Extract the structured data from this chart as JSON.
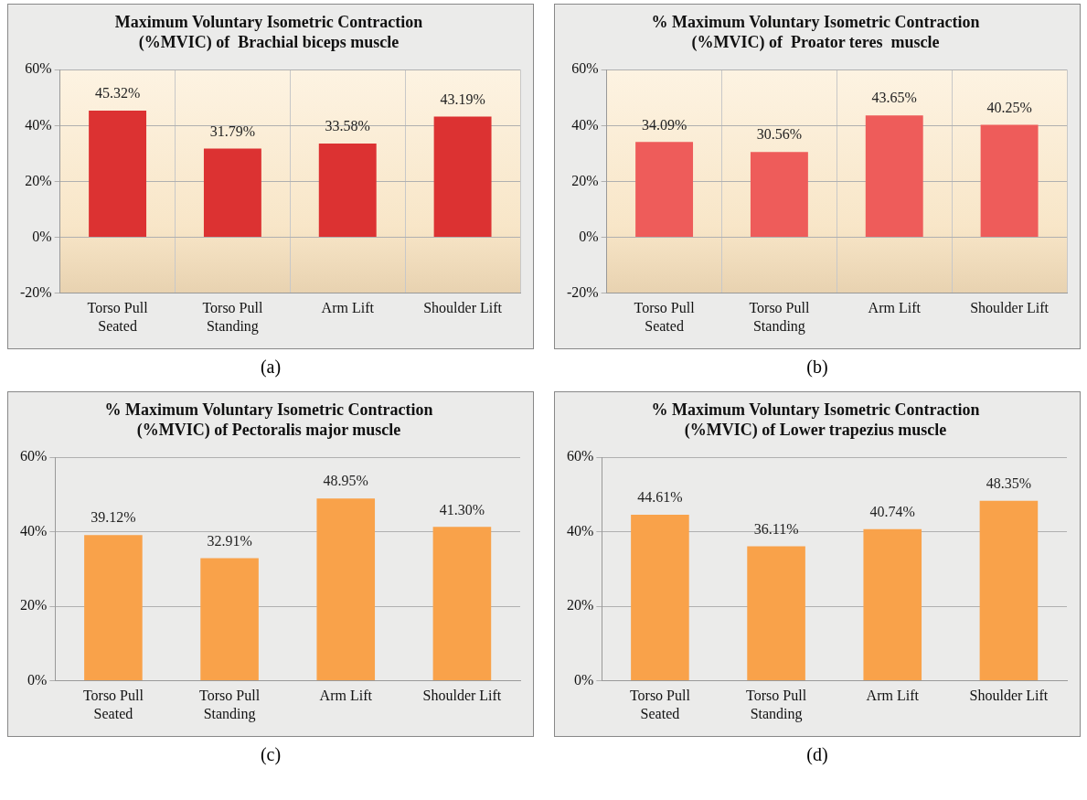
{
  "chart_data": [
    {
      "type": "bar",
      "title": "Maximum Voluntary Isometric Contraction (%MVIC) of  Brachial biceps muscle",
      "categories": [
        "Torso Pull Seated",
        "Torso Pull Standing",
        "Arm Lift",
        "Shoulder Lift"
      ],
      "values": [
        45.32,
        31.79,
        33.58,
        43.19
      ],
      "value_labels": [
        "45.32%",
        "31.79%",
        "33.58%",
        "43.19%"
      ],
      "color": "#dc3232",
      "ylim": [
        -20,
        60
      ],
      "yticks": [
        {
          "value": -20,
          "label": "-20%"
        },
        {
          "value": 0,
          "label": "0%"
        },
        {
          "value": 20,
          "label": "20%"
        },
        {
          "value": 40,
          "label": "40%"
        },
        {
          "value": 60,
          "label": "60%"
        }
      ],
      "grid": true,
      "annotations": [
        "(a)"
      ]
    },
    {
      "type": "bar",
      "title": "% Maximum Voluntary Isometric Contraction (%MVIC) of  Proator teres  muscle",
      "categories": [
        "Torso Pull Seated",
        "Torso Pull Standing",
        "Arm Lift",
        "Shoulder Lift"
      ],
      "values": [
        34.09,
        30.56,
        43.65,
        40.25
      ],
      "value_labels": [
        "34.09%",
        "30.56%",
        "43.65%",
        "40.25%"
      ],
      "color": "#ee5c5a",
      "ylim": [
        -20,
        60
      ],
      "yticks": [
        {
          "value": -20,
          "label": "-20%"
        },
        {
          "value": 0,
          "label": "0%"
        },
        {
          "value": 20,
          "label": "20%"
        },
        {
          "value": 40,
          "label": "40%"
        },
        {
          "value": 60,
          "label": "60%"
        }
      ],
      "grid": true,
      "annotations": [
        "(b)"
      ]
    },
    {
      "type": "bar",
      "title": "% Maximum Voluntary Isometric Contraction (%MVIC) of Pectoralis major muscle",
      "categories": [
        "Torso Pull Seated",
        "Torso Pull Standing",
        "Arm Lift",
        "Shoulder Lift"
      ],
      "values": [
        39.12,
        32.91,
        48.95,
        41.3
      ],
      "value_labels": [
        "39.12%",
        "32.91%",
        "48.95%",
        "41.30%"
      ],
      "color": "#f9a24a",
      "ylim": [
        0,
        60
      ],
      "yticks": [
        {
          "value": 0,
          "label": "0%"
        },
        {
          "value": 20,
          "label": "20%"
        },
        {
          "value": 40,
          "label": "40%"
        },
        {
          "value": 60,
          "label": "60%"
        }
      ],
      "grid": "y",
      "annotations": [
        "(c)"
      ]
    },
    {
      "type": "bar",
      "title": "% Maximum Voluntary Isometric Contraction (%MVIC) of Lower trapezius muscle",
      "categories": [
        "Torso Pull Seated",
        "Torso Pull Standing",
        "Arm Lift",
        "Shoulder Lift"
      ],
      "values": [
        44.61,
        36.11,
        40.74,
        48.35
      ],
      "value_labels": [
        "44.61%",
        "36.11%",
        "40.74%",
        "48.35%"
      ],
      "color": "#f9a24a",
      "ylim": [
        0,
        60
      ],
      "yticks": [
        {
          "value": 0,
          "label": "0%"
        },
        {
          "value": 20,
          "label": "20%"
        },
        {
          "value": 40,
          "label": "40%"
        },
        {
          "value": 60,
          "label": "60%"
        }
      ],
      "grid": "y",
      "annotations": [
        "(d)"
      ]
    }
  ]
}
